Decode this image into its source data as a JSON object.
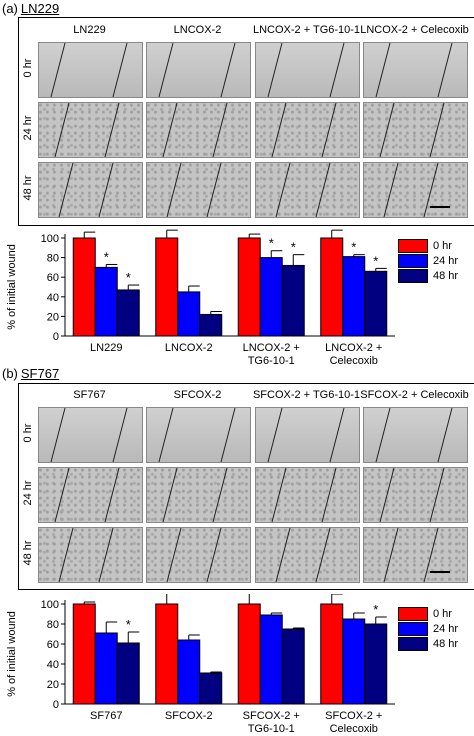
{
  "panels": [
    {
      "letter": "(a)",
      "name": "LN229",
      "columns": [
        "LN229",
        "LNCOX-2",
        "LNCOX-2 + TG6-10-1",
        "LNCOX-2 + Celecoxib"
      ],
      "rows": [
        "0 hr",
        "24 hr",
        "48 hr"
      ],
      "chart_data": {
        "type": "bar",
        "ylabel": "% of initial wound",
        "ylim": [
          0,
          100
        ],
        "yticks": [
          0,
          20,
          40,
          60,
          80,
          100
        ],
        "categories": [
          "LN229",
          "LNCOX-2",
          "LNCOX-2 +\nTG6-10-1",
          "LNCOX-2 +\nCelecoxib"
        ],
        "series": [
          {
            "name": "0 hr",
            "color": "#ff0000",
            "values": [
              100,
              100,
              100,
              100
            ],
            "errors": [
              6,
              8,
              4,
              8
            ]
          },
          {
            "name": "24 hr",
            "color": "#0000ff",
            "values": [
              70,
              45,
              80,
              81
            ],
            "errors": [
              3,
              6,
              7,
              2
            ]
          },
          {
            "name": "48 hr",
            "color": "#000080",
            "values": [
              47,
              22,
              72,
              66
            ],
            "errors": [
              5,
              3,
              11,
              3
            ]
          }
        ],
        "significance": [
          {
            "category": 0,
            "series": 1,
            "mark": "*"
          },
          {
            "category": 0,
            "series": 2,
            "mark": "*"
          },
          {
            "category": 2,
            "series": 1,
            "mark": "*"
          },
          {
            "category": 2,
            "series": 2,
            "mark": "*"
          },
          {
            "category": 3,
            "series": 1,
            "mark": "*"
          },
          {
            "category": 3,
            "series": 2,
            "mark": "*"
          }
        ],
        "legend_position": "right"
      }
    },
    {
      "letter": "(b)",
      "name": "SF767",
      "columns": [
        "SF767",
        "SFCOX-2",
        "SFCOX-2 + TG6-10-1",
        "SFCOX-2 + Celecoxib"
      ],
      "rows": [
        "0 hr",
        "24 hr",
        "48 hr"
      ],
      "chart_data": {
        "type": "bar",
        "ylabel": "% of initial wound",
        "ylim": [
          0,
          100
        ],
        "yticks": [
          0,
          20,
          40,
          60,
          80,
          100
        ],
        "categories": [
          "SF767",
          "SFCOX-2",
          "SFCOX-2 +\nTG6-10-1",
          "SFCOX-2 +\nCelecoxib"
        ],
        "series": [
          {
            "name": "0 hr",
            "color": "#ff0000",
            "values": [
              100,
              100,
              100,
              100
            ],
            "errors": [
              2,
              13,
              15,
              10
            ]
          },
          {
            "name": "24 hr",
            "color": "#0000ff",
            "values": [
              71,
              64,
              89,
              85
            ],
            "errors": [
              11,
              5,
              2,
              6
            ]
          },
          {
            "name": "48 hr",
            "color": "#000080",
            "values": [
              61,
              31,
              75,
              80
            ],
            "errors": [
              11,
              1,
              1,
              7
            ]
          }
        ],
        "significance": [
          {
            "category": 0,
            "series": 2,
            "mark": "*"
          },
          {
            "category": 3,
            "series": 2,
            "mark": "*"
          }
        ],
        "legend_position": "right"
      }
    }
  ]
}
